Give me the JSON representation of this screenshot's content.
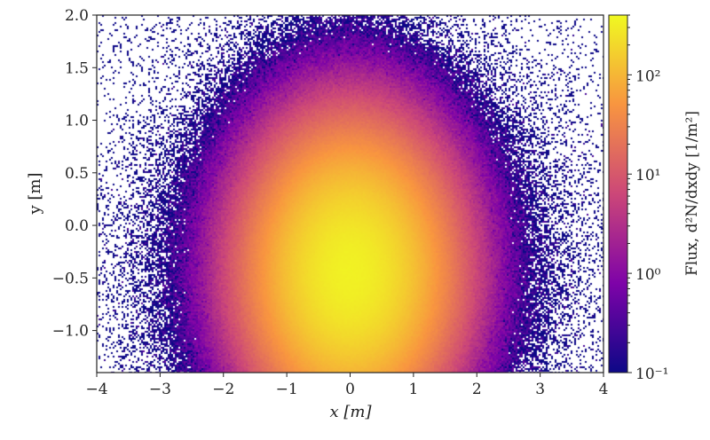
{
  "chart_data": {
    "type": "heatmap",
    "xlabel": "x [m]",
    "ylabel": "y [m]",
    "xlim": [
      -4,
      4
    ],
    "ylim": [
      -1.4,
      2.0
    ],
    "xticks": [
      "−4",
      "−3",
      "−2",
      "−1",
      "0",
      "1",
      "2",
      "3",
      "4"
    ],
    "xtick_values": [
      -4,
      -3,
      -2,
      -1,
      0,
      1,
      2,
      3,
      4
    ],
    "yticks": [
      "−1.0",
      "−0.5",
      "0.0",
      "0.5",
      "1.0",
      "1.5",
      "2.0"
    ],
    "ytick_values": [
      -1.0,
      -0.5,
      0.0,
      0.5,
      1.0,
      1.5,
      2.0
    ],
    "colorbar": {
      "label": "Flux, d²N/dxdy [1/m²]",
      "scale": "log",
      "range": [
        0.1,
        400
      ],
      "ticks": [
        "10⁻¹",
        "10⁰",
        "10¹",
        "10²"
      ],
      "tick_values": [
        0.1,
        1,
        10,
        100
      ],
      "colormap": "plasma",
      "colors": [
        "#0d0887",
        "#7e03a8",
        "#cc4778",
        "#f89540",
        "#f0f921"
      ]
    },
    "peak": {
      "x": 0.0,
      "y": -0.45
    },
    "grid": false
  }
}
